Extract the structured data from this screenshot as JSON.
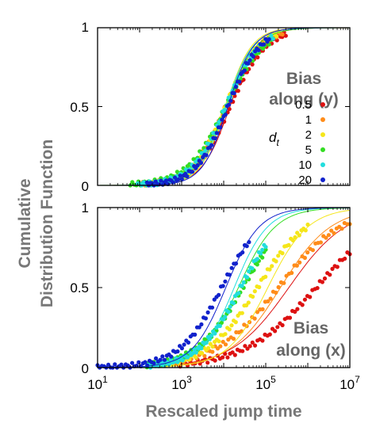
{
  "figure": {
    "ylabel_lines": [
      "Cumulative",
      "Distribution Function"
    ],
    "xlabel": "Rescaled jump time"
  },
  "legend": {
    "title": "d",
    "title_sub": "t",
    "entries": [
      {
        "label": "0.5",
        "color": "#dd1111"
      },
      {
        "label": "1",
        "color": "#ff8c1a"
      },
      {
        "label": "2",
        "color": "#f5e61a"
      },
      {
        "label": "5",
        "color": "#33dd22"
      },
      {
        "label": "10",
        "color": "#22dddd"
      },
      {
        "label": "20",
        "color": "#1122cc"
      }
    ]
  },
  "chart_data": [
    {
      "type": "line",
      "panel": "top",
      "annotation": [
        "Bias",
        "along (y)"
      ],
      "xscale": "log",
      "xlim": [
        10,
        10000000
      ],
      "ylim": [
        0,
        1
      ],
      "ytick_labels": [
        "0",
        "0.5",
        "1"
      ],
      "xlabel": "",
      "ylabel": "",
      "grid": false,
      "legend_position": "right",
      "series": [
        {
          "name": "0.5",
          "color": "#dd1111",
          "log10_median": 4.15,
          "spread": 0.42,
          "x_start": 350,
          "x_end": 300000
        },
        {
          "name": "1",
          "color": "#ff8c1a",
          "log10_median": 4.05,
          "spread": 0.4,
          "x_start": 120,
          "x_end": 250000
        },
        {
          "name": "2",
          "color": "#f5e61a",
          "log10_median": 4.05,
          "spread": 0.38,
          "x_start": 200,
          "x_end": 200000
        },
        {
          "name": "5",
          "color": "#33dd22",
          "log10_median": 4.05,
          "spread": 0.45,
          "x_start": 60,
          "x_end": 150000
        },
        {
          "name": "10",
          "color": "#22dddd",
          "log10_median": 4.05,
          "spread": 0.4,
          "x_start": 90,
          "x_end": 150000
        },
        {
          "name": "20",
          "color": "#1122cc",
          "log10_median": 4.1,
          "spread": 0.38,
          "x_start": 150,
          "x_end": 120000
        }
      ]
    },
    {
      "type": "line",
      "panel": "bottom",
      "annotation": [
        "Bias",
        "along (x)"
      ],
      "xscale": "log",
      "xlim": [
        10,
        10000000
      ],
      "xtick_labels": [
        {
          "base": "10",
          "exp": "1"
        },
        {
          "base": "10",
          "exp": "3"
        },
        {
          "base": "10",
          "exp": "5"
        },
        {
          "base": "10",
          "exp": "7"
        }
      ],
      "ylim": [
        0,
        1
      ],
      "ytick_labels": [
        "0",
        "0.5",
        "1"
      ],
      "grid": false,
      "series": [
        {
          "name": "0.5",
          "color": "#dd1111",
          "log10_median": 6.2,
          "spread": 0.85,
          "x_start": 700,
          "x_end": 10000000,
          "fit_median": 5.55
        },
        {
          "name": "1",
          "color": "#ff8c1a",
          "log10_median": 5.3,
          "spread": 0.75,
          "x_start": 400,
          "x_end": 10000000,
          "fit_median": 5.35
        },
        {
          "name": "2",
          "color": "#f5e61a",
          "log10_median": 4.8,
          "spread": 0.6,
          "x_start": 300,
          "x_end": 1000000,
          "fit_median": 5.05
        },
        {
          "name": "5",
          "color": "#33dd22",
          "log10_median": 4.45,
          "spread": 0.55,
          "x_start": 150,
          "x_end": 100000,
          "fit_median": 4.35
        },
        {
          "name": "10",
          "color": "#22dddd",
          "log10_median": 4.4,
          "spread": 0.5,
          "x_start": 150,
          "x_end": 100000,
          "fit_median": 4.25
        },
        {
          "name": "20",
          "color": "#1122cc",
          "log10_median": 3.95,
          "spread": 0.5,
          "x_start": 10,
          "x_end": 40000,
          "fit_median": 4.05
        }
      ]
    }
  ]
}
